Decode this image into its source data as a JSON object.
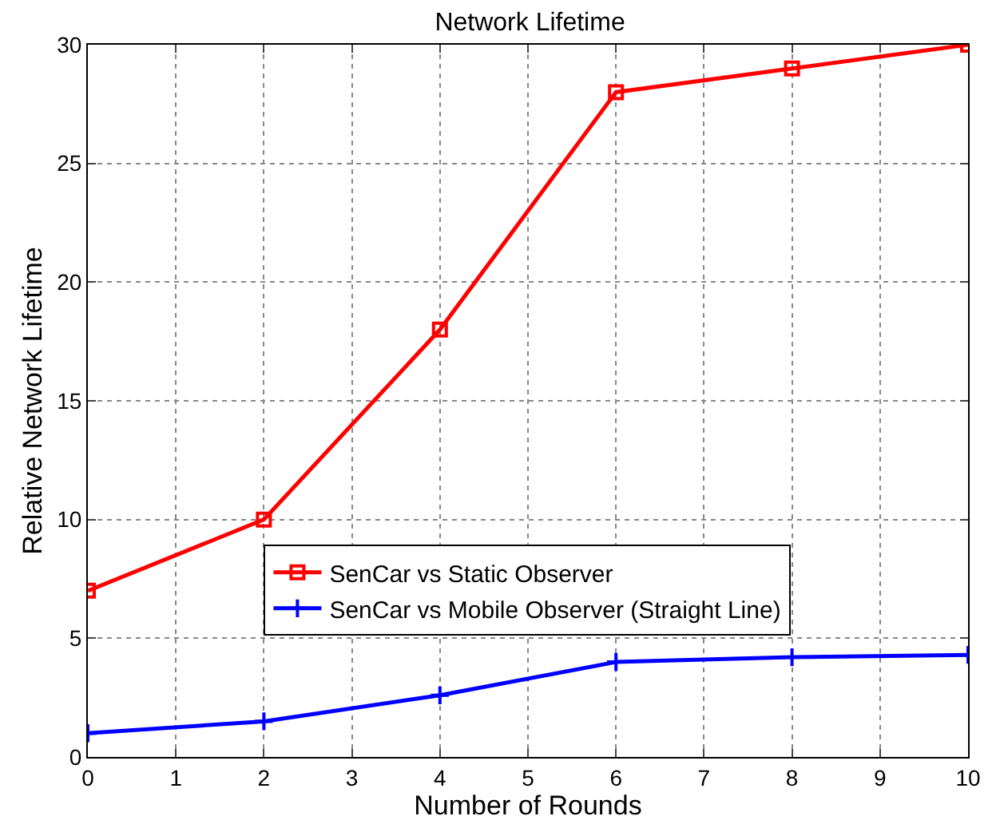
{
  "chart_data": {
    "type": "line",
    "title": "Network Lifetime",
    "xlabel": "Number of Rounds",
    "ylabel": "Relative Network Lifetime",
    "x": [
      0,
      2,
      4,
      6,
      8,
      10
    ],
    "series": [
      {
        "name": "SenCar vs Static Observer",
        "color": "#ff0000",
        "marker": "square",
        "values": [
          7,
          10,
          18,
          28,
          29,
          30
        ]
      },
      {
        "name": "SenCar vs Mobile Observer (Straight Line)",
        "color": "#0000ff",
        "marker": "cross",
        "values": [
          1,
          1.5,
          2.6,
          4,
          4.2,
          4.3
        ]
      }
    ],
    "xlim": [
      0,
      10
    ],
    "xticks": [
      0,
      1,
      2,
      3,
      4,
      5,
      6,
      7,
      8,
      9,
      10
    ],
    "ylim": [
      0,
      30
    ],
    "yticks": [
      0,
      5,
      10,
      15,
      20,
      25,
      30
    ],
    "grid": true,
    "legend": "bottom",
    "line_style": "solid"
  }
}
